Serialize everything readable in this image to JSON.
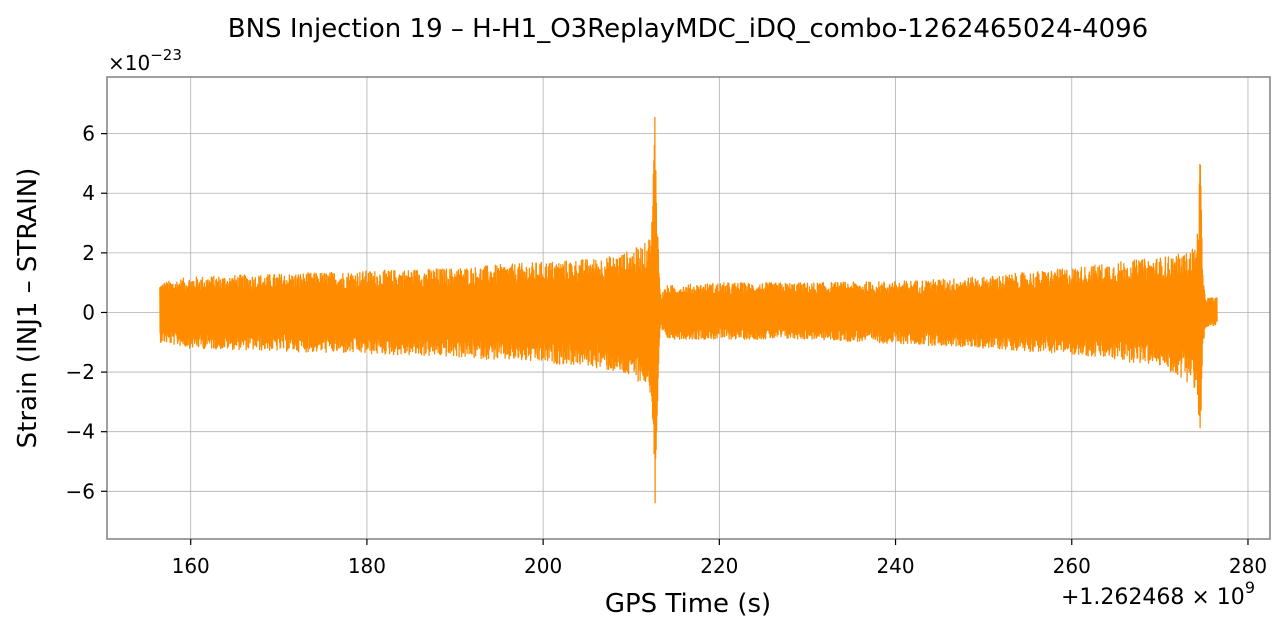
{
  "chart_data": {
    "type": "line",
    "title": "BNS Injection 19 – H-H1_O3ReplayMDC_iDQ_combo-1262465024-4096",
    "xlabel": "GPS Time (s)",
    "ylabel": "Strain (INJ1 – STRAIN)",
    "x_offset_label": "+1.262468 × 10",
    "x_offset_exponent": "9",
    "y_multiplier_label": "×10",
    "y_multiplier_exponent": "−23",
    "xlim": [
      150.5,
      282.5
    ],
    "ylim": [
      -7.6,
      7.9
    ],
    "x_ticks": [
      160,
      180,
      200,
      220,
      240,
      260,
      280
    ],
    "x_tick_labels": [
      "160",
      "180",
      "200",
      "220",
      "240",
      "260",
      "280"
    ],
    "y_ticks": [
      -6,
      -4,
      -2,
      0,
      2,
      4,
      6
    ],
    "y_tick_labels": [
      "−6",
      "−4",
      "−2",
      "0",
      "2",
      "4",
      "6"
    ],
    "grid": true,
    "series_color": "#ff8c00",
    "series": [
      {
        "x": [
          156.5,
          160,
          170,
          180,
          190,
          200,
          205,
          208,
          210,
          211.5,
          212.3,
          212.7,
          213.0,
          213.3,
          214,
          220,
          230,
          240,
          250,
          260,
          265,
          270,
          273,
          274.2,
          274.6,
          274.9,
          275.3,
          276.5
        ],
        "ymax": [
          1.0,
          1.2,
          1.3,
          1.4,
          1.5,
          1.7,
          1.8,
          1.9,
          2.1,
          2.3,
          2.7,
          7.3,
          3.0,
          0.6,
          0.9,
          1.0,
          1.0,
          1.05,
          1.2,
          1.5,
          1.7,
          1.85,
          2.0,
          2.3,
          5.6,
          1.0,
          0.5,
          0.5
        ],
        "ymin": [
          -1.0,
          -1.2,
          -1.3,
          -1.4,
          -1.5,
          -1.7,
          -1.8,
          -2.0,
          -2.2,
          -2.4,
          -2.8,
          -6.9,
          -3.5,
          -0.6,
          -0.9,
          -0.9,
          -0.9,
          -1.05,
          -1.2,
          -1.4,
          -1.6,
          -1.8,
          -2.3,
          -2.6,
          -5.3,
          -1.0,
          -0.5,
          -0.5
        ]
      }
    ]
  }
}
